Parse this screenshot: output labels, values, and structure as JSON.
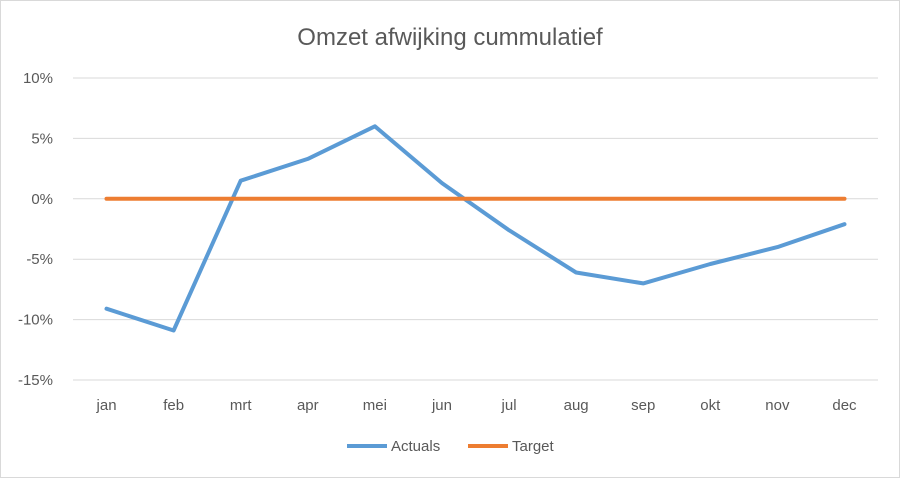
{
  "chart_data": {
    "type": "line",
    "title": "Omzet afwijking cummulatief",
    "xlabel": "",
    "ylabel": "",
    "categories": [
      "jan",
      "feb",
      "mrt",
      "apr",
      "mei",
      "jun",
      "jul",
      "aug",
      "sep",
      "okt",
      "nov",
      "dec"
    ],
    "y_ticks": [
      "10%",
      "5%",
      "0%",
      "-5%",
      "-10%",
      "-15%"
    ],
    "ylim": [
      -15,
      10
    ],
    "grid": true,
    "legend_position": "bottom",
    "series": [
      {
        "name": "Actuals",
        "color": "#5b9bd5",
        "values": [
          -9.1,
          -10.9,
          1.5,
          3.3,
          6.0,
          1.3,
          -2.6,
          -6.1,
          -7.0,
          -5.4,
          -4.0,
          -2.1
        ]
      },
      {
        "name": "Target",
        "color": "#ed7d31",
        "values": [
          0,
          0,
          0,
          0,
          0,
          0,
          0,
          0,
          0,
          0,
          0,
          0
        ]
      }
    ]
  }
}
